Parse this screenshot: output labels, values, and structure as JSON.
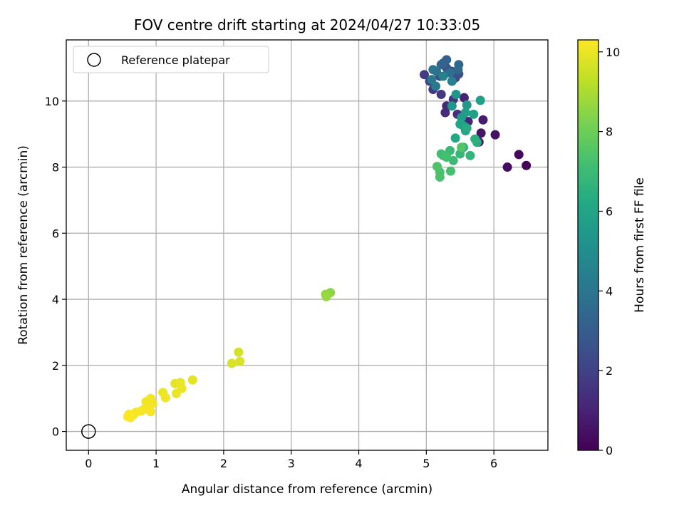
{
  "chart_data": {
    "type": "scatter",
    "title": "FOV centre drift starting at 2024/04/27 10:33:05",
    "xlabel": "Angular distance from reference (arcmin)",
    "ylabel": "Rotation from reference (arcmin)",
    "xlim": [
      -0.33,
      6.8
    ],
    "ylim": [
      -0.57,
      11.85
    ],
    "xticks": [
      0,
      1,
      2,
      3,
      4,
      5,
      6
    ],
    "yticks": [
      0,
      2,
      4,
      6,
      8,
      10
    ],
    "grid": true,
    "legend": {
      "placement": "top-left",
      "entries": [
        {
          "label": "Reference platepar",
          "marker": "open-circle",
          "x": 0,
          "y": 0
        }
      ]
    },
    "colorbar": {
      "label": "Hours from first FF file",
      "colormap": "viridis",
      "range": [
        0,
        10.3
      ],
      "ticks": [
        0,
        2,
        4,
        6,
        8,
        10
      ],
      "colors": [
        "#440154",
        "#482475",
        "#414487",
        "#355f8d",
        "#2a788e",
        "#21918c",
        "#22a884",
        "#44bf70",
        "#7ad151",
        "#bddf26",
        "#fde725"
      ]
    },
    "points": [
      {
        "x": 6.48,
        "y": 8.05,
        "c": 0.1
      },
      {
        "x": 6.37,
        "y": 8.38,
        "c": 0.2
      },
      {
        "x": 6.2,
        "y": 8.0,
        "c": 0.3
      },
      {
        "x": 6.02,
        "y": 8.98,
        "c": 0.5
      },
      {
        "x": 5.81,
        "y": 9.03,
        "c": 0.6
      },
      {
        "x": 5.78,
        "y": 8.76,
        "c": 0.7
      },
      {
        "x": 5.84,
        "y": 9.43,
        "c": 0.8
      },
      {
        "x": 5.56,
        "y": 10.1,
        "c": 1.0
      },
      {
        "x": 5.62,
        "y": 9.38,
        "c": 1.1
      },
      {
        "x": 5.3,
        "y": 9.85,
        "c": 1.2
      },
      {
        "x": 5.28,
        "y": 9.65,
        "c": 1.3
      },
      {
        "x": 5.46,
        "y": 9.6,
        "c": 1.4
      },
      {
        "x": 5.4,
        "y": 10.05,
        "c": 1.5
      },
      {
        "x": 5.22,
        "y": 10.2,
        "c": 1.6
      },
      {
        "x": 5.1,
        "y": 10.35,
        "c": 1.7
      },
      {
        "x": 4.97,
        "y": 10.8,
        "c": 1.8
      },
      {
        "x": 5.05,
        "y": 10.6,
        "c": 2.0
      },
      {
        "x": 5.43,
        "y": 10.7,
        "c": 2.1
      },
      {
        "x": 5.2,
        "y": 10.75,
        "c": 2.3
      },
      {
        "x": 5.48,
        "y": 10.82,
        "c": 2.5
      },
      {
        "x": 5.38,
        "y": 10.9,
        "c": 2.6
      },
      {
        "x": 5.3,
        "y": 11.0,
        "c": 2.8
      },
      {
        "x": 5.25,
        "y": 11.15,
        "c": 3.0
      },
      {
        "x": 5.3,
        "y": 11.25,
        "c": 3.2
      },
      {
        "x": 5.22,
        "y": 11.1,
        "c": 3.3
      },
      {
        "x": 5.48,
        "y": 11.1,
        "c": 3.4
      },
      {
        "x": 5.47,
        "y": 10.95,
        "c": 3.5
      },
      {
        "x": 5.35,
        "y": 10.85,
        "c": 3.7
      },
      {
        "x": 5.15,
        "y": 10.9,
        "c": 3.8
      },
      {
        "x": 5.1,
        "y": 10.95,
        "c": 3.9
      },
      {
        "x": 5.08,
        "y": 10.65,
        "c": 4.1
      },
      {
        "x": 5.14,
        "y": 10.45,
        "c": 4.2
      },
      {
        "x": 5.38,
        "y": 10.6,
        "c": 4.4
      },
      {
        "x": 5.25,
        "y": 10.75,
        "c": 4.5
      },
      {
        "x": 5.44,
        "y": 10.2,
        "c": 5.3
      },
      {
        "x": 5.38,
        "y": 9.85,
        "c": 5.4
      },
      {
        "x": 5.6,
        "y": 9.88,
        "c": 5.5
      },
      {
        "x": 5.52,
        "y": 9.5,
        "c": 5.6
      },
      {
        "x": 5.58,
        "y": 9.65,
        "c": 5.7
      },
      {
        "x": 5.7,
        "y": 9.6,
        "c": 5.8
      },
      {
        "x": 5.8,
        "y": 10.02,
        "c": 5.8
      },
      {
        "x": 5.55,
        "y": 9.25,
        "c": 5.9
      },
      {
        "x": 5.5,
        "y": 9.3,
        "c": 6.0
      },
      {
        "x": 5.58,
        "y": 9.1,
        "c": 6.1
      },
      {
        "x": 5.43,
        "y": 8.88,
        "c": 6.2
      },
      {
        "x": 5.6,
        "y": 9.18,
        "c": 6.3
      },
      {
        "x": 5.75,
        "y": 8.75,
        "c": 6.4
      },
      {
        "x": 5.72,
        "y": 8.85,
        "c": 6.5
      },
      {
        "x": 5.55,
        "y": 8.6,
        "c": 6.6
      },
      {
        "x": 5.65,
        "y": 8.35,
        "c": 6.7
      },
      {
        "x": 5.5,
        "y": 8.4,
        "c": 6.8
      },
      {
        "x": 5.35,
        "y": 8.5,
        "c": 6.9
      },
      {
        "x": 5.4,
        "y": 8.2,
        "c": 7.0
      },
      {
        "x": 5.25,
        "y": 8.35,
        "c": 7.0
      },
      {
        "x": 5.22,
        "y": 8.4,
        "c": 7.1
      },
      {
        "x": 5.3,
        "y": 8.3,
        "c": 7.2
      },
      {
        "x": 5.36,
        "y": 7.88,
        "c": 7.2
      },
      {
        "x": 5.2,
        "y": 7.85,
        "c": 7.3
      },
      {
        "x": 5.2,
        "y": 7.7,
        "c": 7.3
      },
      {
        "x": 5.16,
        "y": 8.02,
        "c": 7.4
      },
      {
        "x": 5.52,
        "y": 8.6,
        "c": 7.5
      },
      {
        "x": 3.58,
        "y": 4.2,
        "c": 8.5
      },
      {
        "x": 3.51,
        "y": 4.15,
        "c": 8.6
      },
      {
        "x": 3.52,
        "y": 4.08,
        "c": 8.7
      },
      {
        "x": 2.22,
        "y": 2.4,
        "c": 9.6
      },
      {
        "x": 2.24,
        "y": 2.12,
        "c": 9.7
      },
      {
        "x": 2.12,
        "y": 2.06,
        "c": 9.7
      },
      {
        "x": 1.54,
        "y": 1.56,
        "c": 9.9
      },
      {
        "x": 1.28,
        "y": 1.45,
        "c": 9.9
      },
      {
        "x": 1.36,
        "y": 1.48,
        "c": 10.0
      },
      {
        "x": 1.38,
        "y": 1.3,
        "c": 10.0
      },
      {
        "x": 1.3,
        "y": 1.15,
        "c": 10.0
      },
      {
        "x": 1.1,
        "y": 1.18,
        "c": 10.0
      },
      {
        "x": 1.14,
        "y": 1.02,
        "c": 10.1
      },
      {
        "x": 0.92,
        "y": 1.0,
        "c": 10.1
      },
      {
        "x": 0.95,
        "y": 0.85,
        "c": 10.1
      },
      {
        "x": 0.85,
        "y": 0.9,
        "c": 10.1
      },
      {
        "x": 0.9,
        "y": 0.78,
        "c": 10.1
      },
      {
        "x": 0.83,
        "y": 0.68,
        "c": 10.2
      },
      {
        "x": 0.92,
        "y": 0.6,
        "c": 10.2
      },
      {
        "x": 0.78,
        "y": 0.62,
        "c": 10.2
      },
      {
        "x": 0.7,
        "y": 0.58,
        "c": 10.2
      },
      {
        "x": 0.66,
        "y": 0.5,
        "c": 10.2
      },
      {
        "x": 0.6,
        "y": 0.52,
        "c": 10.2
      },
      {
        "x": 0.58,
        "y": 0.45,
        "c": 10.3
      },
      {
        "x": 0.62,
        "y": 0.42,
        "c": 10.3
      }
    ]
  }
}
